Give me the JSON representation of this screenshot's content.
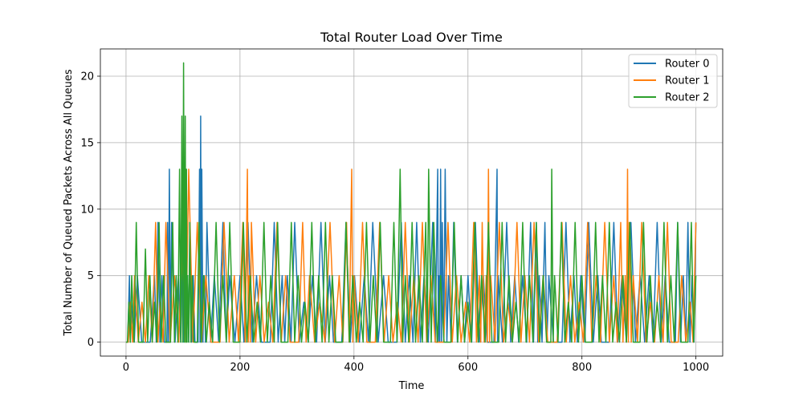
{
  "chart_data": {
    "type": "line",
    "title": "Total Router Load Over Time",
    "xlabel": "Time",
    "ylabel": "Total Number of Queued Packets Across All Queues",
    "xlim": [
      -45,
      1047
    ],
    "ylim": [
      -1.05,
      22.05
    ],
    "x_ticks": [
      0,
      200,
      400,
      600,
      800,
      1000
    ],
    "y_ticks": [
      0,
      5,
      10,
      15,
      20
    ],
    "grid": true,
    "legend_position": "top-right",
    "series": [
      {
        "name": "Router 0",
        "color": "#1f77b4",
        "x": [
          0,
          6,
          9,
          20,
          35,
          50,
          56,
          63,
          71,
          73,
          76,
          80,
          92,
          100,
          103,
          108,
          112,
          118,
          124,
          129,
          131,
          133,
          137,
          142,
          155,
          170,
          182,
          200,
          214,
          229,
          246,
          260,
          274,
          283,
          296,
          312,
          327,
          342,
          357,
          371,
          386,
          401,
          418,
          433,
          452,
          468,
          483,
          497,
          510,
          523,
          538,
          547,
          549,
          552,
          555,
          560,
          566,
          575,
          588,
          600,
          613,
          627,
          640,
          651,
          653,
          668,
          682,
          696,
          710,
          720,
          725,
          735,
          742,
          758,
          772,
          786,
          798,
          812,
          828,
          840,
          856,
          870,
          886,
          902,
          918,
          932,
          946,
          960,
          968,
          978,
          986,
          993,
          1000
        ],
        "y": [
          0,
          5,
          3,
          5,
          0,
          5,
          9,
          5,
          0,
          9,
          13,
          9,
          5,
          9,
          13,
          5,
          9,
          5,
          0,
          13,
          17,
          13,
          5,
          9,
          5,
          9,
          5,
          5,
          9,
          5,
          0,
          9,
          5,
          5,
          9,
          3,
          5,
          9,
          5,
          0,
          9,
          5,
          5,
          9,
          5,
          0,
          9,
          5,
          9,
          5,
          9,
          13,
          5,
          13,
          9,
          13,
          5,
          9,
          5,
          5,
          9,
          5,
          0,
          13,
          5,
          9,
          5,
          5,
          9,
          9,
          5,
          9,
          5,
          0,
          9,
          5,
          5,
          9,
          5,
          0,
          9,
          5,
          9,
          5,
          5,
          9,
          5,
          0,
          9,
          5,
          9,
          5,
          9
        ]
      },
      {
        "name": "Router 1",
        "color": "#ff7f0e",
        "x": [
          0,
          8,
          15,
          28,
          40,
          52,
          60,
          70,
          85,
          100,
          110,
          125,
          140,
          158,
          172,
          190,
          205,
          213,
          216,
          220,
          235,
          250,
          265,
          280,
          296,
          310,
          322,
          340,
          358,
          374,
          387,
          396,
          400,
          415,
          430,
          445,
          461,
          476,
          490,
          505,
          520,
          535,
          550,
          565,
          580,
          596,
          610,
          620,
          625,
          632,
          636,
          640,
          655,
          670,
          686,
          700,
          716,
          732,
          748,
          765,
          780,
          795,
          810,
          825,
          840,
          856,
          868,
          876,
          880,
          883,
          890,
          905,
          920,
          935,
          950,
          963,
          975,
          990,
          1000
        ],
        "y": [
          0,
          3,
          5,
          3,
          5,
          9,
          3,
          9,
          5,
          9,
          13,
          9,
          5,
          0,
          9,
          5,
          9,
          13,
          5,
          9,
          5,
          3,
          9,
          5,
          0,
          9,
          5,
          3,
          9,
          5,
          9,
          13,
          5,
          9,
          0,
          9,
          5,
          3,
          9,
          5,
          9,
          5,
          0,
          9,
          5,
          3,
          9,
          5,
          9,
          5,
          13,
          5,
          9,
          3,
          9,
          5,
          9,
          5,
          0,
          9,
          5,
          3,
          9,
          5,
          9,
          5,
          9,
          5,
          13,
          9,
          5,
          9,
          3,
          5,
          9,
          0,
          5,
          3,
          9
        ]
      },
      {
        "name": "Router 2",
        "color": "#2ca02c",
        "x": [
          0,
          5,
          10,
          18,
          26,
          34,
          42,
          50,
          58,
          66,
          74,
          82,
          88,
          94,
          98,
          101,
          104,
          106,
          108,
          112,
          116,
          122,
          128,
          136,
          146,
          158,
          170,
          182,
          194,
          206,
          218,
          230,
          242,
          254,
          266,
          278,
          290,
          302,
          314,
          326,
          338,
          350,
          362,
          374,
          386,
          398,
          410,
          422,
          434,
          446,
          458,
          470,
          481,
          490,
          502,
          514,
          526,
          531,
          540,
          552,
          564,
          576,
          588,
          600,
          612,
          624,
          636,
          648,
          660,
          672,
          684,
          696,
          708,
          720,
          732,
          744,
          747,
          752,
          764,
          776,
          788,
          800,
          812,
          824,
          836,
          848,
          860,
          872,
          884,
          896,
          908,
          920,
          932,
          944,
          956,
          968,
          980,
          992,
          1000
        ],
        "y": [
          0,
          3,
          5,
          9,
          0,
          7,
          5,
          3,
          9,
          5,
          0,
          9,
          5,
          13,
          17,
          21,
          17,
          13,
          5,
          9,
          5,
          0,
          9,
          5,
          3,
          9,
          5,
          9,
          0,
          9,
          5,
          3,
          9,
          5,
          9,
          0,
          9,
          5,
          3,
          9,
          5,
          9,
          5,
          0,
          9,
          5,
          3,
          9,
          5,
          9,
          0,
          9,
          13,
          5,
          9,
          5,
          9,
          13,
          9,
          5,
          0,
          9,
          5,
          3,
          9,
          5,
          9,
          0,
          9,
          5,
          3,
          9,
          5,
          9,
          5,
          0,
          13,
          5,
          9,
          3,
          9,
          5,
          0,
          9,
          5,
          9,
          3,
          5,
          9,
          0,
          9,
          5,
          3,
          9,
          5,
          9,
          0,
          9,
          5
        ]
      }
    ]
  }
}
